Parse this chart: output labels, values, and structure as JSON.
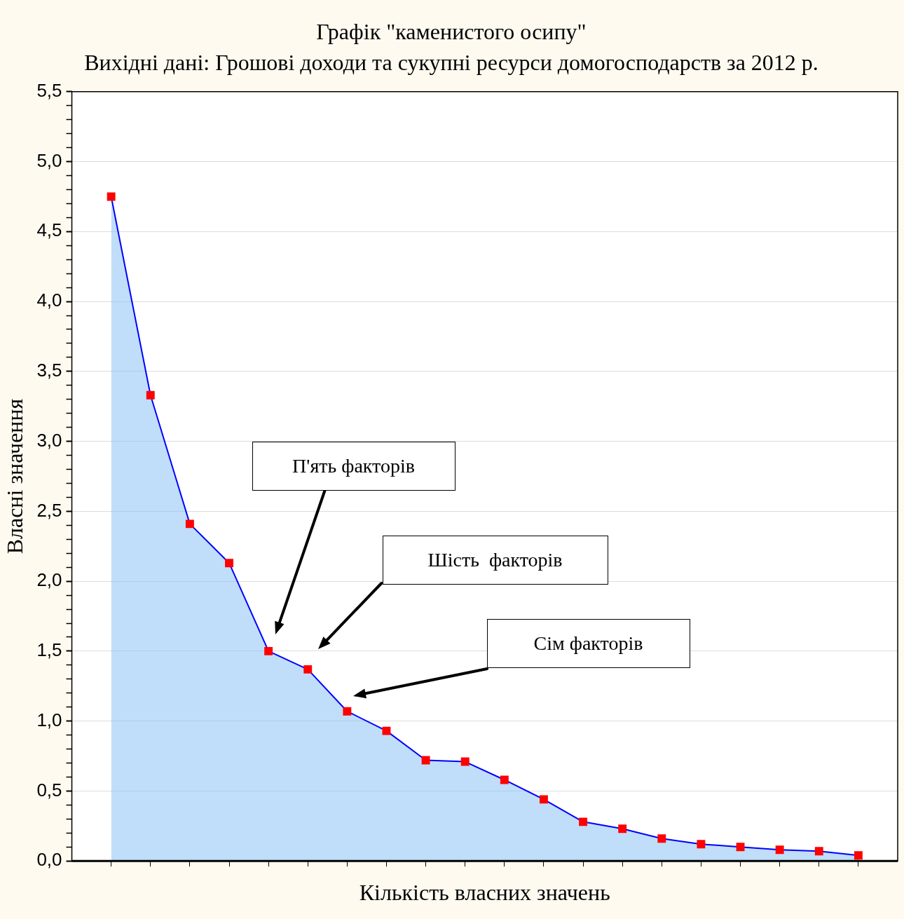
{
  "chart_data": {
    "type": "area",
    "title": "Графік \"каменистого осипу\"",
    "subtitle": "Вихідні дані: Грошові доходи та сукупні ресурси домогосподарств за 2012 р.",
    "xlabel": "Кількість власних значень",
    "ylabel": "Власні значення",
    "categories": [
      null,
      null,
      null,
      null,
      null,
      null,
      null,
      null,
      null,
      null,
      null,
      null,
      null,
      null,
      null,
      null,
      null,
      null,
      null,
      null
    ],
    "series": [
      {
        "color": "#0000ff",
        "colors": [
          "#ff0000",
          "#ff0000",
          "#ff0000",
          "#ff0000",
          "#ff0000",
          "#ff0000",
          "#ff0000",
          "#ff0000",
          "#ff0000",
          "#ff0000",
          "#ff0000",
          "#ff0000",
          "#ff0000",
          "#ff0000",
          "#ff0000",
          "#ff0000",
          "#ff0000",
          "#ff0000",
          "#ff0000",
          "#ff0000"
        ],
        "values": [
          4.75,
          3.33,
          2.41,
          2.13,
          1.5,
          1.37,
          1.07,
          0.93,
          0.72,
          0.71,
          0.58,
          0.44,
          0.28,
          0.23,
          0.16,
          0.12,
          0.1,
          0.08,
          0.07,
          0.04
        ]
      }
    ],
    "ylim": [
      0,
      5.5
    ],
    "yticks": [
      {
        "value": 0,
        "label": "0,0"
      },
      {
        "value": 0.1,
        "label": null
      },
      {
        "value": 0.2,
        "label": null
      },
      {
        "value": 0.3,
        "label": null
      },
      {
        "value": 0.4,
        "label": null
      },
      {
        "value": 0.5,
        "label": "0,5"
      },
      {
        "value": 0.6,
        "label": null
      },
      {
        "value": 0.7,
        "label": null
      },
      {
        "value": 0.8,
        "label": null
      },
      {
        "value": 0.9,
        "label": null
      },
      {
        "value": 1,
        "label": "1,0"
      },
      {
        "value": 1.1,
        "label": null
      },
      {
        "value": 1.2,
        "label": null
      },
      {
        "value": 1.3,
        "label": null
      },
      {
        "value": 1.4,
        "label": null
      },
      {
        "value": 1.5,
        "label": "1,5"
      },
      {
        "value": 1.6,
        "label": null
      },
      {
        "value": 1.7,
        "label": null
      },
      {
        "value": 1.8,
        "label": null
      },
      {
        "value": 1.9,
        "label": null
      },
      {
        "value": 2,
        "label": "2,0"
      },
      {
        "value": 2.1,
        "label": null
      },
      {
        "value": 2.2,
        "label": null
      },
      {
        "value": 2.3,
        "label": null
      },
      {
        "value": 2.4,
        "label": null
      },
      {
        "value": 2.5,
        "label": "2,5"
      },
      {
        "value": 2.6,
        "label": null
      },
      {
        "value": 2.7,
        "label": null
      },
      {
        "value": 2.8,
        "label": null
      },
      {
        "value": 2.9,
        "label": null
      },
      {
        "value": 3,
        "label": "3,0"
      },
      {
        "value": 3.1,
        "label": null
      },
      {
        "value": 3.2,
        "label": null
      },
      {
        "value": 3.3,
        "label": null
      },
      {
        "value": 3.4,
        "label": null
      },
      {
        "value": 3.5,
        "label": "3,5"
      },
      {
        "value": 3.6,
        "label": null
      },
      {
        "value": 3.7,
        "label": null
      },
      {
        "value": 3.8,
        "label": null
      },
      {
        "value": 3.9,
        "label": null
      },
      {
        "value": 4,
        "label": "4,0"
      },
      {
        "value": 4.1,
        "label": null
      },
      {
        "value": 4.2,
        "label": null
      },
      {
        "value": 4.3,
        "label": null
      },
      {
        "value": 4.4,
        "label": null
      },
      {
        "value": 4.5,
        "label": "4,5"
      },
      {
        "value": 4.6,
        "label": null
      },
      {
        "value": 4.7,
        "label": null
      },
      {
        "value": 4.8,
        "label": null
      },
      {
        "value": 4.9,
        "label": null
      },
      {
        "value": 5,
        "label": "5,0"
      },
      {
        "value": 5.1,
        "label": null
      },
      {
        "value": 5.2,
        "label": null
      },
      {
        "value": 5.3,
        "label": null
      },
      {
        "value": 5.4,
        "label": null
      },
      {
        "value": 5.5,
        "label": "5,5"
      }
    ],
    "grid": "y",
    "marker": "square",
    "legend": false,
    "annotations": [
      "П'ять факторів",
      "Шість  факторів",
      "Сім факторів"
    ]
  }
}
